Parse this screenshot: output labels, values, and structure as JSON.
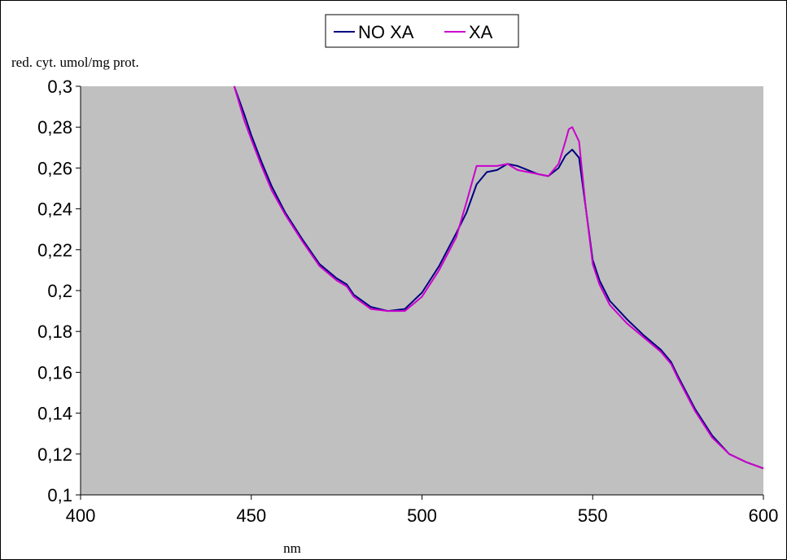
{
  "chart_data": {
    "type": "line",
    "title": "",
    "xlabel": "nm",
    "ylabel": "red. cyt. umol/mg prot.",
    "xlim": [
      400,
      600
    ],
    "ylim": [
      0.1,
      0.3
    ],
    "x_ticks": [
      400,
      450,
      500,
      550,
      600
    ],
    "x_tick_labels": [
      "400",
      "450",
      "500",
      "550",
      "600"
    ],
    "y_ticks": [
      0.1,
      0.12,
      0.14,
      0.16,
      0.18,
      0.2,
      0.22,
      0.24,
      0.26,
      0.28,
      0.3
    ],
    "y_tick_labels": [
      "0,1",
      "0,12",
      "0,14",
      "0,16",
      "0,18",
      "0,2",
      "0,22",
      "0,24",
      "0,26",
      "0,28",
      "0,3"
    ],
    "grid": false,
    "plot_background": "#c0c0c0",
    "legend_position": "top-center",
    "series": [
      {
        "name": "NO XA",
        "color": "#000080",
        "x": [
          445,
          448,
          450,
          453,
          456,
          460,
          465,
          470,
          475,
          478,
          480,
          485,
          490,
          495,
          500,
          505,
          510,
          513,
          516,
          519,
          522,
          525,
          528,
          531,
          534,
          537,
          540,
          542,
          544,
          546,
          548,
          550,
          552,
          555,
          560,
          565,
          570,
          573,
          575,
          580,
          585,
          590,
          595,
          600
        ],
        "y": [
          0.3,
          0.286,
          0.276,
          0.263,
          0.251,
          0.238,
          0.225,
          0.213,
          0.206,
          0.203,
          0.198,
          0.192,
          0.19,
          0.191,
          0.199,
          0.212,
          0.228,
          0.238,
          0.252,
          0.258,
          0.259,
          0.262,
          0.261,
          0.259,
          0.257,
          0.256,
          0.26,
          0.266,
          0.269,
          0.265,
          0.24,
          0.215,
          0.205,
          0.195,
          0.186,
          0.178,
          0.171,
          0.165,
          0.158,
          0.142,
          0.129,
          0.12,
          0.116,
          0.113
        ]
      },
      {
        "name": "XA",
        "color": "#cc00cc",
        "x": [
          445,
          448,
          450,
          453,
          456,
          460,
          465,
          470,
          475,
          478,
          480,
          485,
          490,
          495,
          500,
          505,
          510,
          513,
          516,
          519,
          522,
          525,
          528,
          531,
          534,
          537,
          540,
          542,
          543,
          544,
          546,
          548,
          550,
          552,
          555,
          560,
          565,
          570,
          573,
          575,
          580,
          585,
          590,
          595,
          600
        ],
        "y": [
          0.3,
          0.283,
          0.274,
          0.261,
          0.249,
          0.237,
          0.224,
          0.212,
          0.205,
          0.202,
          0.197,
          0.191,
          0.19,
          0.19,
          0.197,
          0.21,
          0.226,
          0.243,
          0.261,
          0.261,
          0.261,
          0.262,
          0.259,
          0.258,
          0.257,
          0.256,
          0.262,
          0.273,
          0.279,
          0.28,
          0.273,
          0.24,
          0.213,
          0.203,
          0.193,
          0.184,
          0.177,
          0.17,
          0.164,
          0.157,
          0.141,
          0.128,
          0.12,
          0.116,
          0.113
        ]
      }
    ]
  }
}
